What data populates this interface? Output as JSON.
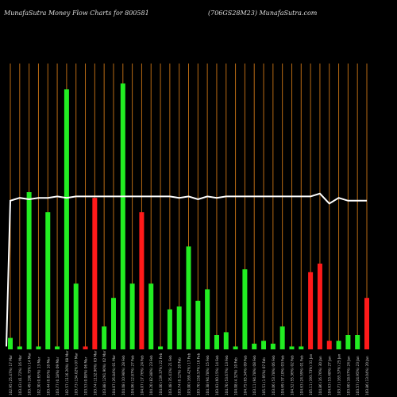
{
  "header": {
    "left_title": "MunafaSutra  Money Flow  Charts for 800581",
    "right_title": "(706GS28M23) MunafaSutra.com"
  },
  "colors": {
    "background": "#000000",
    "gridline": "#b86a14",
    "up_bar": "#22ee22",
    "down_bar": "#ff1a1a",
    "price_line": "#ffffff",
    "tick_text": "#cccccc"
  },
  "chart_data": {
    "type": "bar",
    "ylim": [
      0,
      100
    ],
    "price_ylim": [
      0,
      100
    ],
    "categories": [
      "102.95 (25.47%) 17 Mar",
      "103.43 (41.72%) 16 Mar",
      "103.49 (198.75%) 14 Mar",
      "102.30 (0.65%) 13 Mar",
      "103.44 (0.05%) 10 Mar",
      "103.77 (0.18%) 09 Mar",
      "102.57 (1116.20%) 08 Mar",
      "103.73 (134.02%) 07 Mar",
      "103.53 (0.08%) 06 Mar",
      "103.74 (1132.96%) 03 Mar",
      "103.88 (1291.90%) 02 Mar",
      "104.07 (26.84%) 01 Mar",
      "104.08 (10.98%) 28 Feb",
      "104.06 (12.87%) 27 Feb",
      "104.07 (17.76%) 24 Feb",
      "104.20 (82.88%) 23 Feb",
      "104.00 (139.37%) 22 Feb",
      "103.48 (35.41%) 21 Feb",
      "103.74 (0.12%) 20 Feb",
      "103.00 (169.42%) 17 Feb",
      "103.70 (158.57%) 16 Feb",
      "104.38 (94.78%) 15 Feb",
      "103.93 (60.15%) 14 Feb",
      "104.70 (53.67%) 13 Feb",
      "104.08 (4.32%) 10 Feb",
      "104.75 (65.34%) 09 Feb",
      "103.11 (94.78%) 08 Feb",
      "105.51 (1.95%) 07 Feb",
      "103.06 (53.78%) 06 Feb",
      "104.69 (37.10%) 03 Feb",
      "104.52 (55.36%) 02 Feb",
      "104.63 (24.59%) 01 Feb",
      "105.11 (193.73%) 31 Jan",
      "104.86 (16.76%) 30 Jan",
      "104.63 (53.48%) 27 Jan",
      "103.71 (165.57%) 25 Jan",
      "103.60 (18.67%) 24 Jan",
      "103.57 (24.95%) 23 Jan",
      "103.86 (13.04%) 20 Jan"
    ],
    "values": [
      4,
      1,
      55,
      1,
      48,
      1,
      91,
      23,
      1,
      53,
      8,
      18,
      93,
      23,
      48,
      23,
      1,
      14,
      15,
      36,
      17,
      21,
      5,
      6,
      1,
      28,
      2,
      3,
      2,
      8,
      1,
      1,
      27,
      30,
      3,
      3,
      5,
      5,
      18
    ],
    "directions": [
      "up",
      "up",
      "up",
      "up",
      "up",
      "up",
      "up",
      "up",
      "down",
      "down",
      "up",
      "up",
      "up",
      "up",
      "down",
      "up",
      "up",
      "up",
      "up",
      "up",
      "up",
      "up",
      "up",
      "up",
      "up",
      "up",
      "up",
      "up",
      "up",
      "up",
      "up",
      "up",
      "down",
      "down",
      "down",
      "up",
      "up",
      "up",
      "down"
    ],
    "price_line": [
      52,
      53,
      52.5,
      53,
      53,
      53.5,
      53,
      53.5,
      53.5,
      53.5,
      53.5,
      53.5,
      53.5,
      53.5,
      53.5,
      53.5,
      53.5,
      53.5,
      53,
      53.5,
      52.5,
      53.5,
      53,
      53.5,
      53.5,
      53.5,
      53.5,
      53.5,
      53.5,
      53.5,
      53.5,
      53.5,
      53.5,
      54.5,
      51,
      53,
      52,
      52,
      52
    ],
    "price_start": 1
  }
}
